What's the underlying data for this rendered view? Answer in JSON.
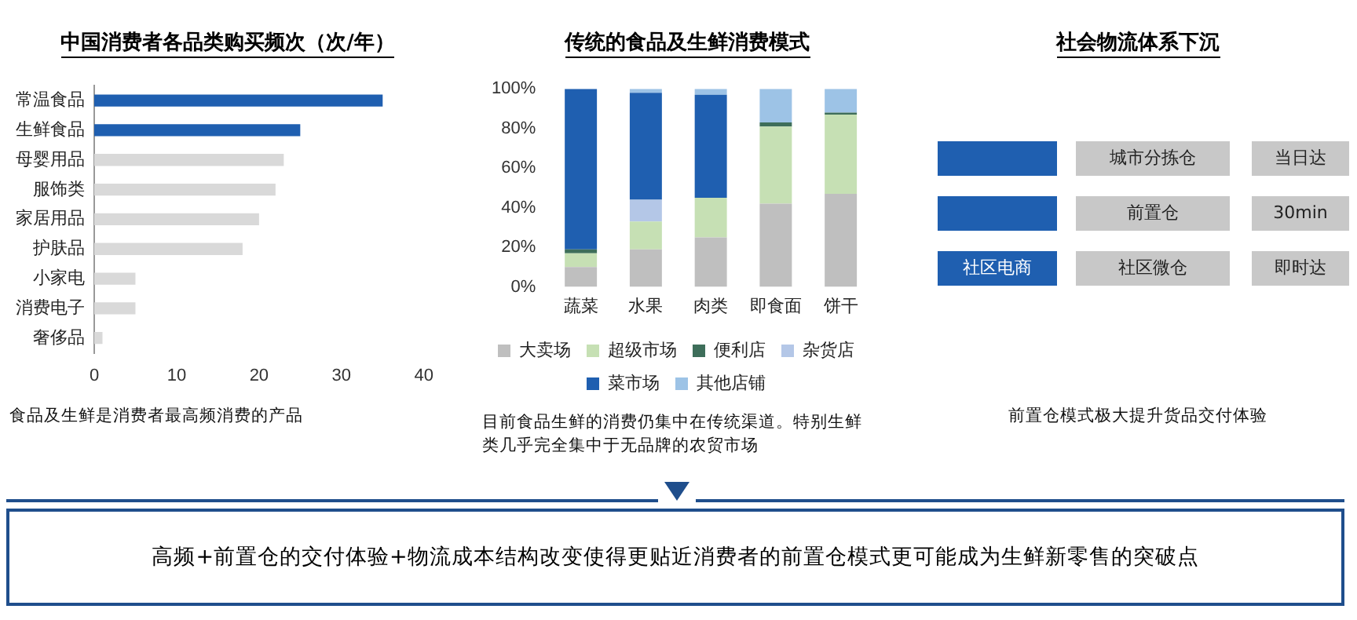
{
  "chart_data": [
    {
      "type": "bar",
      "title": "中国消费者各品类购买频次（次/年）",
      "orientation": "horizontal",
      "categories": [
        "常温食品",
        "生鲜食品",
        "母婴用品",
        "服饰类",
        "家居用品",
        "护肤品",
        "小家电",
        "消费电子",
        "奢侈品"
      ],
      "values": [
        35,
        25,
        23,
        22,
        20,
        18,
        5,
        5,
        1
      ],
      "colors": [
        "#1f5fb0",
        "#1f5fb0",
        "#d9d9d9",
        "#d9d9d9",
        "#d9d9d9",
        "#d9d9d9",
        "#d9d9d9",
        "#d9d9d9",
        "#d9d9d9"
      ],
      "xlim": [
        0,
        40
      ],
      "xticks": [
        0,
        10,
        20,
        30,
        40
      ],
      "grid": false,
      "legend": false,
      "annotations": [
        "食品及生鲜是消费者最高频消费的产品"
      ]
    },
    {
      "type": "bar",
      "title": "传统的食品及生鲜消费模式",
      "stacked": true,
      "categories": [
        "蔬菜",
        "水果",
        "肉类",
        "即食面",
        "饼干"
      ],
      "series": [
        {
          "name": "大卖场",
          "color": "#bfbfbf",
          "values": [
            10,
            19,
            25,
            42,
            47
          ]
        },
        {
          "name": "超级市场",
          "color": "#c6e0b4",
          "values": [
            7,
            14,
            20,
            39,
            40
          ]
        },
        {
          "name": "便利店",
          "color": "#3e6e5a",
          "values": [
            2,
            0,
            0,
            2,
            1
          ]
        },
        {
          "name": "杂货店",
          "color": "#b4c7e7",
          "values": [
            0,
            11,
            0,
            0,
            0
          ]
        },
        {
          "name": "菜市场",
          "color": "#1f5fb0",
          "values": [
            81,
            54,
            52,
            0,
            0
          ]
        },
        {
          "name": "其他店铺",
          "color": "#9dc3e6",
          "values": [
            0,
            2,
            3,
            17,
            12
          ]
        }
      ],
      "ylim": [
        0,
        100
      ],
      "yticks": [
        {
          "value": 0,
          "label": "0%"
        },
        {
          "value": 20,
          "label": "20%"
        },
        {
          "value": 40,
          "label": "40%"
        },
        {
          "value": 60,
          "label": "60%"
        },
        {
          "value": 80,
          "label": "80%"
        },
        {
          "value": 100,
          "label": "100%"
        }
      ],
      "grid": false,
      "legend": "bottom",
      "annotations": [
        "目前食品生鲜的消费仍集中在传统渠道。特别生鲜类几乎完全集中于无品牌的农贸市场"
      ]
    },
    {
      "type": "other",
      "title": "社会物流体系下沉",
      "cell_labels": [
        [
          null,
          "城市分拣仓",
          "当日达"
        ],
        [
          null,
          "前置仓",
          "30min"
        ],
        [
          "社区电商",
          "社区微仓",
          "即时达"
        ]
      ],
      "annotations": [
        "前置仓模式极大提升货品交付体验"
      ]
    },
    {
      "type": "other",
      "annotations": [
        "高频+前置仓的交付体验+物流成本结构改变使得更贴近消费者的前置仓模式更可能成为生鲜新零售的突破点"
      ]
    }
  ]
}
